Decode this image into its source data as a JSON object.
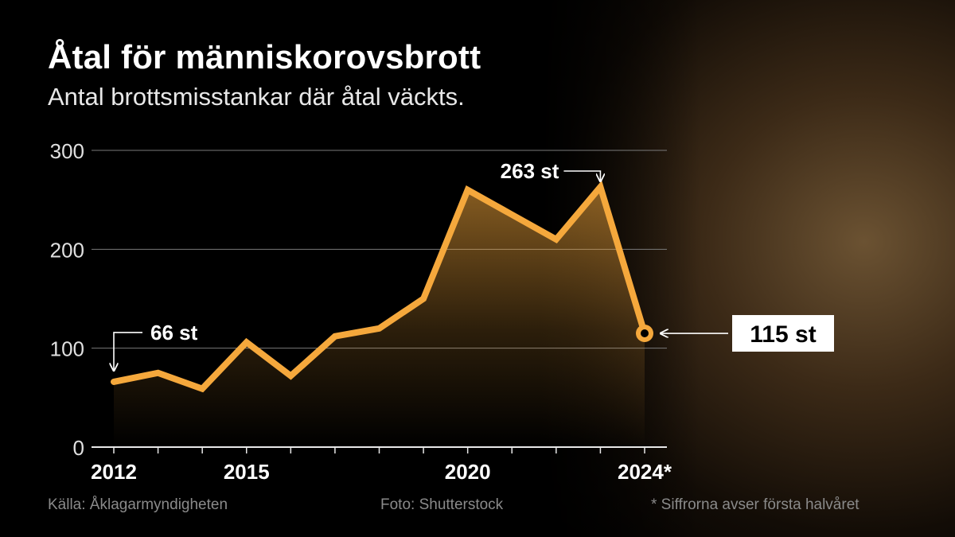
{
  "header": {
    "title": "Åtal för människorovsbrott",
    "subtitle": "Antal brottsmisstankar där åtal väckts."
  },
  "footer": {
    "source": "Källa: Åklagarmyndigheten",
    "photo": "Foto: Shutterstock",
    "note": "* Siffrorna avser första halvåret"
  },
  "colors": {
    "line": "#f5a83c",
    "gridline": "#7a7a7a",
    "label_box": "#ffffff",
    "background": "#000000"
  },
  "chart_data": {
    "type": "line",
    "x": [
      2012,
      2013,
      2014,
      2015,
      2016,
      2017,
      2018,
      2019,
      2020,
      2021,
      2022,
      2023,
      2024
    ],
    "series": [
      {
        "values": [
          66,
          75,
          59,
          106,
          72,
          112,
          120,
          150,
          260,
          235,
          210,
          263,
          115
        ]
      }
    ],
    "ylim": [
      0,
      300
    ],
    "y_ticks": [
      0,
      100,
      200,
      300
    ],
    "x_tick_labels": [
      {
        "x": 2012,
        "label": "2012"
      },
      {
        "x": 2015,
        "label": "2015"
      },
      {
        "x": 2020,
        "label": "2020"
      },
      {
        "x": 2024,
        "label": "2024*"
      }
    ],
    "grid": true,
    "annotations": [
      {
        "x": 2012,
        "y": 66,
        "label": "66 st"
      },
      {
        "x": 2023,
        "y": 263,
        "label": "263 st"
      },
      {
        "x": 2024,
        "y": 115,
        "label": "115 st",
        "boxed": true
      }
    ]
  }
}
